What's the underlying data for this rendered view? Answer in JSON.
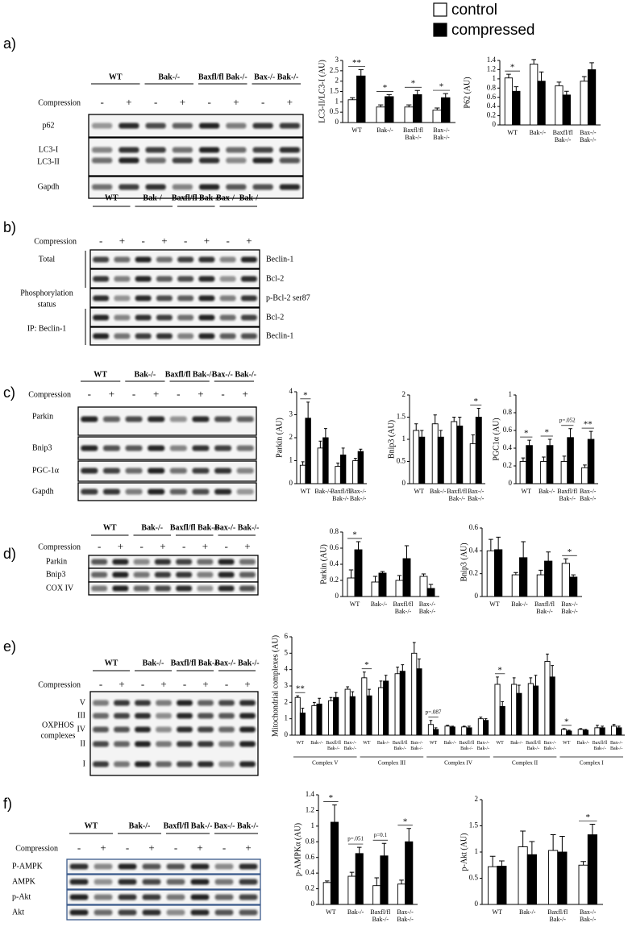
{
  "panels": [
    {
      "label": "a)",
      "groups": [
        "WT",
        "Bak-/-",
        "Baxfl/fl Bak-/-",
        "Bax-/- Bak-/-"
      ],
      "compression": "Compression",
      "lanes": [
        "-",
        "+",
        "-",
        "+",
        "-",
        "+",
        "-",
        "+"
      ],
      "rows": [
        [
          "p62"
        ],
        [
          "LC3-I",
          "LC3-II"
        ],
        [
          "Gapdh"
        ]
      ]
    },
    {
      "label": "b)",
      "groups": [
        "WT",
        "Bak-/-",
        "Baxfl/fl Bak-/-",
        "Bax-/- Bak-/-"
      ],
      "compression": "Compression",
      "lanes": [
        "-",
        "+",
        "-",
        "+",
        "-",
        "+",
        "-",
        "+"
      ],
      "rows": [
        [
          "Beclin-1"
        ],
        [
          "Bcl-2"
        ],
        [
          "p-Bcl-2 ser87"
        ],
        [
          "Bcl-2"
        ],
        [
          "Beclin-1"
        ]
      ],
      "side_labels": [
        [
          "Total"
        ],
        [
          "Phosphorylation",
          "status"
        ],
        [
          "IP: Beclin-1"
        ]
      ]
    },
    {
      "label": "c)",
      "groups": [
        "WT",
        "Bak-/-",
        "Baxfl/fl Bak-/-",
        "Bax-/- Bak-/-"
      ],
      "compression": "Compression",
      "lanes": [
        "-",
        "+",
        "-",
        "+",
        "-",
        "+",
        "-",
        "+"
      ],
      "rows": [
        [
          "Parkin"
        ],
        [
          "Bnip3"
        ],
        [
          "PGC-1α"
        ],
        [
          "Gapdh"
        ]
      ]
    },
    {
      "label": "d)",
      "groups": [
        "WT",
        "Bak-/-",
        "Baxfl/fl Bak-/-",
        "Bax-/- Bak-/-"
      ],
      "compression": "Compression",
      "lanes": [
        "-",
        "+",
        "-",
        "+",
        "-",
        "+",
        "-",
        "+"
      ],
      "rows": [
        [
          "Parkin"
        ],
        [
          "Bnip3"
        ],
        [
          "COX IV"
        ]
      ]
    },
    {
      "label": "e)",
      "groups": [
        "WT",
        "Bak-/-",
        "Baxfl/fl Bak-/-",
        "Bax-/- Bak-/-"
      ],
      "compression": "Compression",
      "lanes": [
        "-",
        "+",
        "-",
        "+",
        "-",
        "+",
        "-",
        "+"
      ],
      "rows": [
        [
          "V"
        ],
        [
          "III"
        ],
        [
          "IV"
        ],
        [
          "II"
        ],
        [
          "I"
        ]
      ],
      "side_labels": [
        [
          "OXPHOS",
          "complexes"
        ]
      ]
    },
    {
      "label": "f)",
      "groups": [
        "WT",
        "Bak-/-",
        "Baxfl/fl Bak-/-",
        "Bax-/- Bak-/-"
      ],
      "compression": "Compression",
      "lanes": [
        "-",
        "+",
        "-",
        "+",
        "-",
        "+",
        "-",
        "+"
      ],
      "rows": [
        [
          "P-AMPK"
        ],
        [
          "AMPK"
        ],
        [
          "p-Akt"
        ],
        [
          "Akt"
        ]
      ]
    }
  ],
  "chart_data": [
    {
      "type": "bar",
      "ylabel": "LC3-II/LC3-I (AU)",
      "categories": [
        "WT",
        "Bak-/-",
        "Baxfl/fl Bak-/-",
        "Bax-/- Bak-/-"
      ],
      "series": [
        {
          "name": "control",
          "color": "#ffffff",
          "values": [
            1.1,
            0.75,
            0.75,
            0.6
          ],
          "errors": [
            0.1,
            0.1,
            0.1,
            0.1
          ]
        },
        {
          "name": "compressed",
          "color": "#000000",
          "values": [
            2.25,
            1.25,
            1.35,
            1.2
          ],
          "errors": [
            0.3,
            0.1,
            0.2,
            0.2
          ]
        }
      ],
      "annotations": [
        "**",
        "*",
        "*",
        "*"
      ],
      "ylim": [
        0,
        3
      ],
      "yticks": [
        0,
        0.5,
        1,
        1.5,
        2,
        2.5,
        3
      ]
    },
    {
      "type": "bar",
      "ylabel": "P62 (AU)",
      "categories": [
        "WT",
        "Bak-/-",
        "Baxfl/fl Bak-/-",
        "Bax-/- Bak-/-"
      ],
      "series": [
        {
          "color": "#ffffff",
          "values": [
            1.02,
            1.32,
            0.85,
            0.95
          ],
          "errors": [
            0.08,
            0.1,
            0.08,
            0.1
          ]
        },
        {
          "color": "#000000",
          "values": [
            0.73,
            0.95,
            0.65,
            1.2
          ],
          "errors": [
            0.1,
            0.2,
            0.08,
            0.15
          ]
        }
      ],
      "annotations": [
        "*",
        null,
        null,
        null
      ],
      "ylim": [
        0,
        1.4
      ],
      "yticks": [
        0,
        0.2,
        0.4,
        0.6,
        0.8,
        1,
        1.2,
        1.4
      ]
    },
    {
      "type": "bar",
      "ylabel": "Parkin (AU)",
      "categories": [
        "WT",
        "Bak-/-",
        "Baxfl/fl Bak-/-",
        "Bax-/- Bak-/-"
      ],
      "series": [
        {
          "color": "#ffffff",
          "values": [
            0.8,
            1.55,
            0.75,
            1.0
          ],
          "errors": [
            0.15,
            0.3,
            0.15,
            0.1
          ]
        },
        {
          "color": "#000000",
          "values": [
            2.85,
            2.0,
            1.25,
            1.4
          ],
          "errors": [
            0.7,
            0.4,
            0.3,
            0.1
          ]
        }
      ],
      "annotations": [
        "*",
        null,
        null,
        null
      ],
      "ylim": [
        0,
        4
      ],
      "yticks": [
        0,
        1,
        2,
        3,
        4
      ]
    },
    {
      "type": "bar",
      "ylabel": "Bnip3 (AU)",
      "categories": [
        "WT",
        "Bak-/-",
        "Baxfl/fl Bak-/-",
        "Bax-/- Bak-/-"
      ],
      "series": [
        {
          "color": "#ffffff",
          "values": [
            1.2,
            1.35,
            1.4,
            0.9
          ],
          "errors": [
            0.15,
            0.2,
            0.1,
            0.2
          ]
        },
        {
          "color": "#000000",
          "values": [
            1.05,
            1.05,
            1.3,
            1.5
          ],
          "errors": [
            0.15,
            0.15,
            0.2,
            0.2
          ]
        }
      ],
      "annotations": [
        null,
        null,
        null,
        "*"
      ],
      "ylim": [
        0,
        2
      ],
      "yticks": [
        0,
        0.5,
        1,
        1.5,
        2
      ]
    },
    {
      "type": "bar",
      "ylabel": "PGC1α (AU)",
      "categories": [
        "WT",
        "Bak-/-",
        "Baxfl/fl Bak-/-",
        "Bax-/- Bak-/-"
      ],
      "series": [
        {
          "color": "#ffffff",
          "values": [
            0.25,
            0.25,
            0.25,
            0.18
          ],
          "errors": [
            0.04,
            0.05,
            0.06,
            0.03
          ]
        },
        {
          "color": "#000000",
          "values": [
            0.43,
            0.43,
            0.52,
            0.5
          ],
          "errors": [
            0.06,
            0.07,
            0.1,
            0.09
          ]
        }
      ],
      "annotations": [
        "*",
        "*",
        "p=.052",
        "**"
      ],
      "ylim": [
        0,
        1
      ],
      "yticks": [
        0,
        0.2,
        0.4,
        0.6,
        0.8,
        1
      ]
    },
    {
      "type": "bar",
      "ylabel": "Parkin (AU)",
      "categories": [
        "WT",
        "Bak-/-",
        "Baxfl/fl Bak-/-",
        "Bax-/- Bak-/-"
      ],
      "series": [
        {
          "color": "#ffffff",
          "values": [
            0.23,
            0.18,
            0.2,
            0.25
          ],
          "errors": [
            0.1,
            0.07,
            0.06,
            0.03
          ]
        },
        {
          "color": "#000000",
          "values": [
            0.58,
            0.29,
            0.47,
            0.1
          ],
          "errors": [
            0.1,
            0.02,
            0.16,
            0.05
          ]
        }
      ],
      "annotations": [
        "*",
        null,
        null,
        null
      ],
      "ylim": [
        0,
        0.8
      ],
      "yticks": [
        0,
        0.2,
        0.4,
        0.6,
        0.8
      ]
    },
    {
      "type": "bar",
      "ylabel": "Bnip3 (AU)",
      "categories": [
        "WT",
        "Bak-/-",
        "Baxfl/fl Bak-/-",
        "Bax-/- Bak-/-"
      ],
      "series": [
        {
          "color": "#ffffff",
          "values": [
            0.4,
            0.19,
            0.19,
            0.29
          ],
          "errors": [
            0.1,
            0.02,
            0.04,
            0.04
          ]
        },
        {
          "color": "#000000",
          "values": [
            0.41,
            0.34,
            0.31,
            0.17
          ],
          "errors": [
            0.11,
            0.14,
            0.08,
            0.02
          ]
        }
      ],
      "annotations": [
        null,
        null,
        null,
        "*"
      ],
      "ylim": [
        0,
        0.6
      ],
      "yticks": [
        0,
        0.2,
        0.4,
        0.6
      ]
    },
    {
      "type": "bar",
      "ylabel": "Mitochondrial complexes (AU)",
      "categories": [
        "WT",
        "Bak-/-",
        "Baxfl/fl Bak-/-",
        "Bax-/- Bak-/-",
        "WT",
        "Bak-/-",
        "Baxfl/fl Bak-/-",
        "Bax-/- Bak-/-",
        "WT",
        "Bak-/-",
        "Baxfl/fl Bak-/-",
        "Bax-/- Bak-/-",
        "WT",
        "Bak-/-",
        "Baxfl/fl Bak-/-",
        "Bax-/- Bak-/-",
        "WT",
        "Bak-/-",
        "Baxfl/fl Bak-/-",
        "Bax-/- Bak-/-"
      ],
      "groups": [
        "Complex V",
        "Complex III",
        "Complex IV",
        "Complex II",
        "Complex I"
      ],
      "series": [
        {
          "color": "#ffffff",
          "values": [
            2.3,
            1.8,
            2.1,
            2.8,
            3.5,
            2.9,
            3.75,
            5.0,
            0.65,
            0.55,
            0.5,
            1.0,
            3.1,
            3.1,
            3.15,
            4.5,
            0.35,
            0.35,
            0.45,
            0.55
          ],
          "errors": [
            0.1,
            0.2,
            0.2,
            0.15,
            0.35,
            0.4,
            0.4,
            0.65,
            0.25,
            0.05,
            0.05,
            0.1,
            0.45,
            0.4,
            0.35,
            0.45,
            0.05,
            0.05,
            0.15,
            0.1
          ]
        },
        {
          "color": "#000000",
          "values": [
            1.35,
            1.9,
            2.3,
            2.35,
            2.4,
            3.3,
            3.9,
            4.05,
            0.35,
            0.5,
            0.45,
            0.9,
            1.75,
            2.55,
            3.0,
            3.55,
            0.25,
            0.3,
            0.45,
            0.45
          ],
          "errors": [
            0.3,
            0.35,
            0.3,
            0.3,
            0.4,
            0.35,
            0.4,
            0.6,
            0.1,
            0.05,
            0.1,
            0.1,
            0.3,
            0.5,
            0.65,
            0.7,
            0.05,
            0.05,
            0.1,
            0.1
          ]
        }
      ],
      "annotations": [
        "**",
        null,
        null,
        null,
        "*",
        null,
        null,
        null,
        "p=.087",
        null,
        null,
        null,
        "*",
        null,
        null,
        null,
        "*",
        null,
        null,
        null
      ],
      "ylim": [
        0,
        6
      ],
      "yticks": [
        0,
        1,
        2,
        3,
        4,
        5,
        6
      ]
    },
    {
      "type": "bar",
      "ylabel": "p-AMPKα (AU)",
      "categories": [
        "WT",
        "Bak-/-",
        "Baxfl/fl Bak-/-",
        "Bax-/- Bak-/-"
      ],
      "series": [
        {
          "color": "#ffffff",
          "values": [
            0.28,
            0.36,
            0.24,
            0.26
          ],
          "errors": [
            0.02,
            0.05,
            0.1,
            0.05
          ]
        },
        {
          "color": "#000000",
          "values": [
            1.05,
            0.65,
            0.62,
            0.8
          ],
          "errors": [
            0.22,
            0.08,
            0.16,
            0.17
          ]
        }
      ],
      "annotations": [
        "*",
        "p=.051",
        "p=0.1",
        "*"
      ],
      "ylim": [
        0,
        1.4
      ],
      "yticks": [
        0,
        0.2,
        0.4,
        0.6,
        0.8,
        1,
        1.2,
        1.4
      ]
    },
    {
      "type": "bar",
      "ylabel": "p-Akt (AU)",
      "categories": [
        "WT",
        "Bak-/-",
        "Baxfl/fl Bak-/-",
        "Bax-/- Bak-/-"
      ],
      "series": [
        {
          "color": "#ffffff",
          "values": [
            0.72,
            1.1,
            1.03,
            0.75
          ],
          "errors": [
            0.2,
            0.3,
            0.3,
            0.07
          ]
        },
        {
          "color": "#000000",
          "values": [
            0.73,
            0.95,
            1.0,
            1.33
          ],
          "errors": [
            0.1,
            0.25,
            0.3,
            0.2
          ]
        }
      ],
      "annotations": [
        null,
        null,
        null,
        "*"
      ],
      "ylim": [
        0,
        2
      ],
      "yticks": [
        0,
        0.5,
        1,
        1.5,
        2
      ]
    }
  ]
}
